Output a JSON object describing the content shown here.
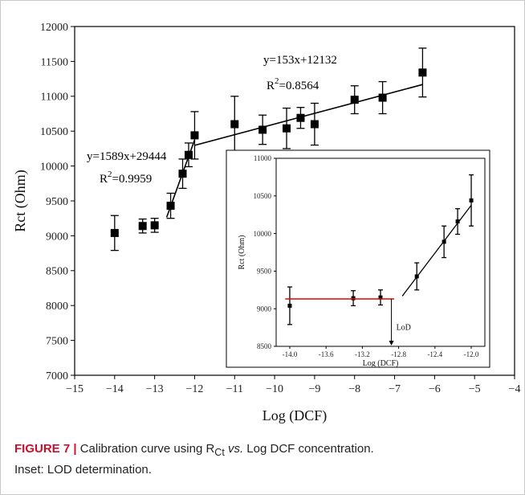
{
  "chart_data": [
    {
      "type": "scatter",
      "xlabel": "Log (DCF)",
      "ylabel": "Rct (Ohm)",
      "xlim": [
        -15,
        -4
      ],
      "ylim": [
        7000,
        12000
      ],
      "x_ticks": [
        -15,
        -14,
        -13,
        -12,
        -11,
        -10,
        -9,
        -8,
        -7,
        -6,
        -5,
        -4
      ],
      "x_tick_labels": [
        "−15",
        "−14",
        "−13",
        "−12",
        "−11",
        "−10",
        "−9",
        "−8",
        "−7",
        "−6",
        "−5",
        "−4"
      ],
      "y_ticks": [
        7000,
        7500,
        8000,
        8500,
        9000,
        9500,
        10000,
        10500,
        11000,
        11500,
        12000
      ],
      "y_tick_labels": [
        "7000",
        "7500",
        "8000",
        "8500",
        "9000",
        "9500",
        "10000",
        "10500",
        "11000",
        "11500",
        "12000"
      ],
      "grid": false,
      "marker_color": "#000000",
      "points": [
        {
          "x": -14.0,
          "y": 9040,
          "err": 250
        },
        {
          "x": -13.3,
          "y": 9140,
          "err": 100
        },
        {
          "x": -13.0,
          "y": 9150,
          "err": 100
        },
        {
          "x": -12.6,
          "y": 9430,
          "err": 180
        },
        {
          "x": -12.3,
          "y": 9890,
          "err": 210
        },
        {
          "x": -12.15,
          "y": 10160,
          "err": 170
        },
        {
          "x": -12.0,
          "y": 10440,
          "err": 340
        },
        {
          "x": -11.0,
          "y": 10600,
          "err": 400
        },
        {
          "x": -10.3,
          "y": 10520,
          "err": 210
        },
        {
          "x": -9.7,
          "y": 10540,
          "err": 290
        },
        {
          "x": -9.35,
          "y": 10690,
          "err": 150
        },
        {
          "x": -9.0,
          "y": 10600,
          "err": 300
        },
        {
          "x": -8.0,
          "y": 10950,
          "err": 200
        },
        {
          "x": -7.3,
          "y": 10980,
          "err": 230
        },
        {
          "x": -6.3,
          "y": 11340,
          "err": 350
        }
      ],
      "fits": [
        {
          "equation": "y=1589x+29444",
          "r2_prefix": "R",
          "r2_sup": "2",
          "r2_value": "=0.9959",
          "x_range": [
            -12.7,
            -12.0
          ]
        },
        {
          "equation": "y=153x+12132",
          "r2_prefix": "R",
          "r2_sup": "2",
          "r2_value": "=0.8564",
          "x_range": [
            -12.0,
            -6.3
          ]
        }
      ]
    },
    {
      "type": "scatter",
      "inset": true,
      "xlabel": "Log (DCF)",
      "ylabel": "Rct (Ohm)",
      "xlim": [
        -14.15,
        -11.85
      ],
      "ylim": [
        8500,
        11000
      ],
      "x_ticks": [
        -14.0,
        -13.6,
        -13.2,
        -12.8,
        -12.4,
        -12.0
      ],
      "x_tick_labels": [
        "-14.0",
        "-13.6",
        "-13.2",
        "-12.8",
        "-12.4",
        "-12.0"
      ],
      "y_ticks": [
        8500,
        9000,
        9500,
        10000,
        10500,
        11000
      ],
      "y_tick_labels": [
        "8500",
        "9000",
        "9500",
        "10000",
        "10500",
        "11000"
      ],
      "grid": false,
      "points": [
        {
          "x": -14.0,
          "y": 9040,
          "err": 250
        },
        {
          "x": -13.3,
          "y": 9140,
          "err": 100
        },
        {
          "x": -13.0,
          "y": 9150,
          "err": 100
        },
        {
          "x": -12.6,
          "y": 9430,
          "err": 180
        },
        {
          "x": -12.3,
          "y": 9890,
          "err": 210
        },
        {
          "x": -12.15,
          "y": 10160,
          "err": 170
        },
        {
          "x": -12.0,
          "y": 10440,
          "err": 340
        }
      ],
      "baseline": {
        "y": 9130,
        "x_range": [
          -14.05,
          -12.85
        ],
        "color": "#e60000"
      },
      "fit": {
        "x_range": [
          -12.76,
          -12.0
        ]
      },
      "lod": {
        "label": "LoD",
        "x": -12.88
      }
    }
  ],
  "caption": {
    "label": "FIGURE 7 |",
    "text_1": " Calibration curve using R",
    "subscript": "Ct",
    "italic": " vs.",
    "text_2": " Log DCF concentration.",
    "line_2": "Inset: LOD determination."
  }
}
